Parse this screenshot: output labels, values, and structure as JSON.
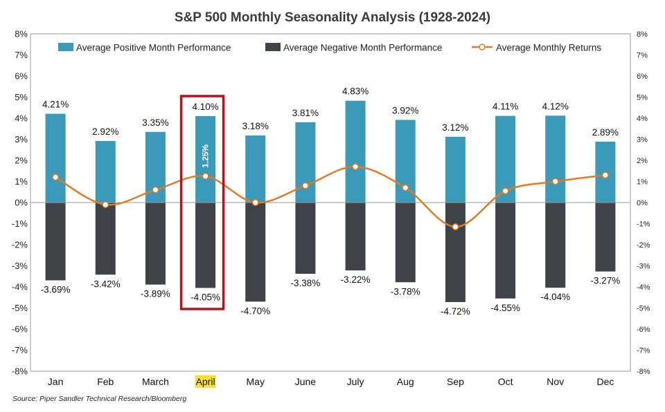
{
  "colors": {
    "positive": "#3b9ab9",
    "negative": "#3f4347",
    "line": "#e07b24",
    "marker_fill": "#ffffff",
    "highlight_box": "#b5121b",
    "highlight_label_bg": "#f7df3a"
  },
  "chart_data": {
    "type": "bar",
    "title": "S&P 500 Monthly Seasonality Analysis (1928-2024)",
    "categories": [
      "Jan",
      "Feb",
      "March",
      "April",
      "May",
      "June",
      "July",
      "Aug",
      "Sep",
      "Oct",
      "Nov",
      "Dec"
    ],
    "series": [
      {
        "name": "Average Positive Month Performance",
        "type": "bar",
        "values": [
          4.21,
          2.92,
          3.35,
          4.1,
          3.18,
          3.81,
          4.83,
          3.92,
          3.12,
          4.11,
          4.12,
          2.89
        ],
        "labels": [
          "4.21%",
          "2.92%",
          "3.35%",
          "4.10%",
          "3.18%",
          "3.81%",
          "4.83%",
          "3.92%",
          "3.12%",
          "4.11%",
          "4.12%",
          "2.89%"
        ]
      },
      {
        "name": "Average Negative Month Performance",
        "type": "bar",
        "values": [
          -3.69,
          -3.42,
          -3.89,
          -4.05,
          -4.7,
          -3.38,
          -3.22,
          -3.78,
          -4.72,
          -4.55,
          -4.04,
          -3.27
        ],
        "labels": [
          "-3.69%",
          "-3.42%",
          "-3.89%",
          "-4.05%",
          "-4.70%",
          "-3.38%",
          "-3.22%",
          "-3.78%",
          "-4.72%",
          "-4.55%",
          "-4.04%",
          "-3.27%"
        ]
      },
      {
        "name": "Average Monthly Returns",
        "type": "line",
        "values": [
          1.2,
          -0.1,
          0.6,
          1.25,
          0.0,
          0.8,
          1.7,
          0.7,
          -1.15,
          0.55,
          1.0,
          1.3
        ]
      }
    ],
    "ylim": [
      -8,
      8
    ],
    "yticks": [
      8,
      7,
      6,
      5,
      4,
      3,
      2,
      1,
      0,
      -1,
      -2,
      -3,
      -4,
      -5,
      -6,
      -7,
      -8
    ],
    "ytick_labels": [
      "8%",
      "7%",
      "6%",
      "5%",
      "4%",
      "3%",
      "2%",
      "1%",
      "0%",
      "-1%",
      "-2%",
      "-3%",
      "-4%",
      "-5%",
      "-6%",
      "-7%",
      "-8%"
    ],
    "legend_position": "top",
    "highlight": {
      "category": "April",
      "annotation": "1.25%"
    },
    "source": "Source: Piper Sandler Technical Research/Bloomberg"
  }
}
